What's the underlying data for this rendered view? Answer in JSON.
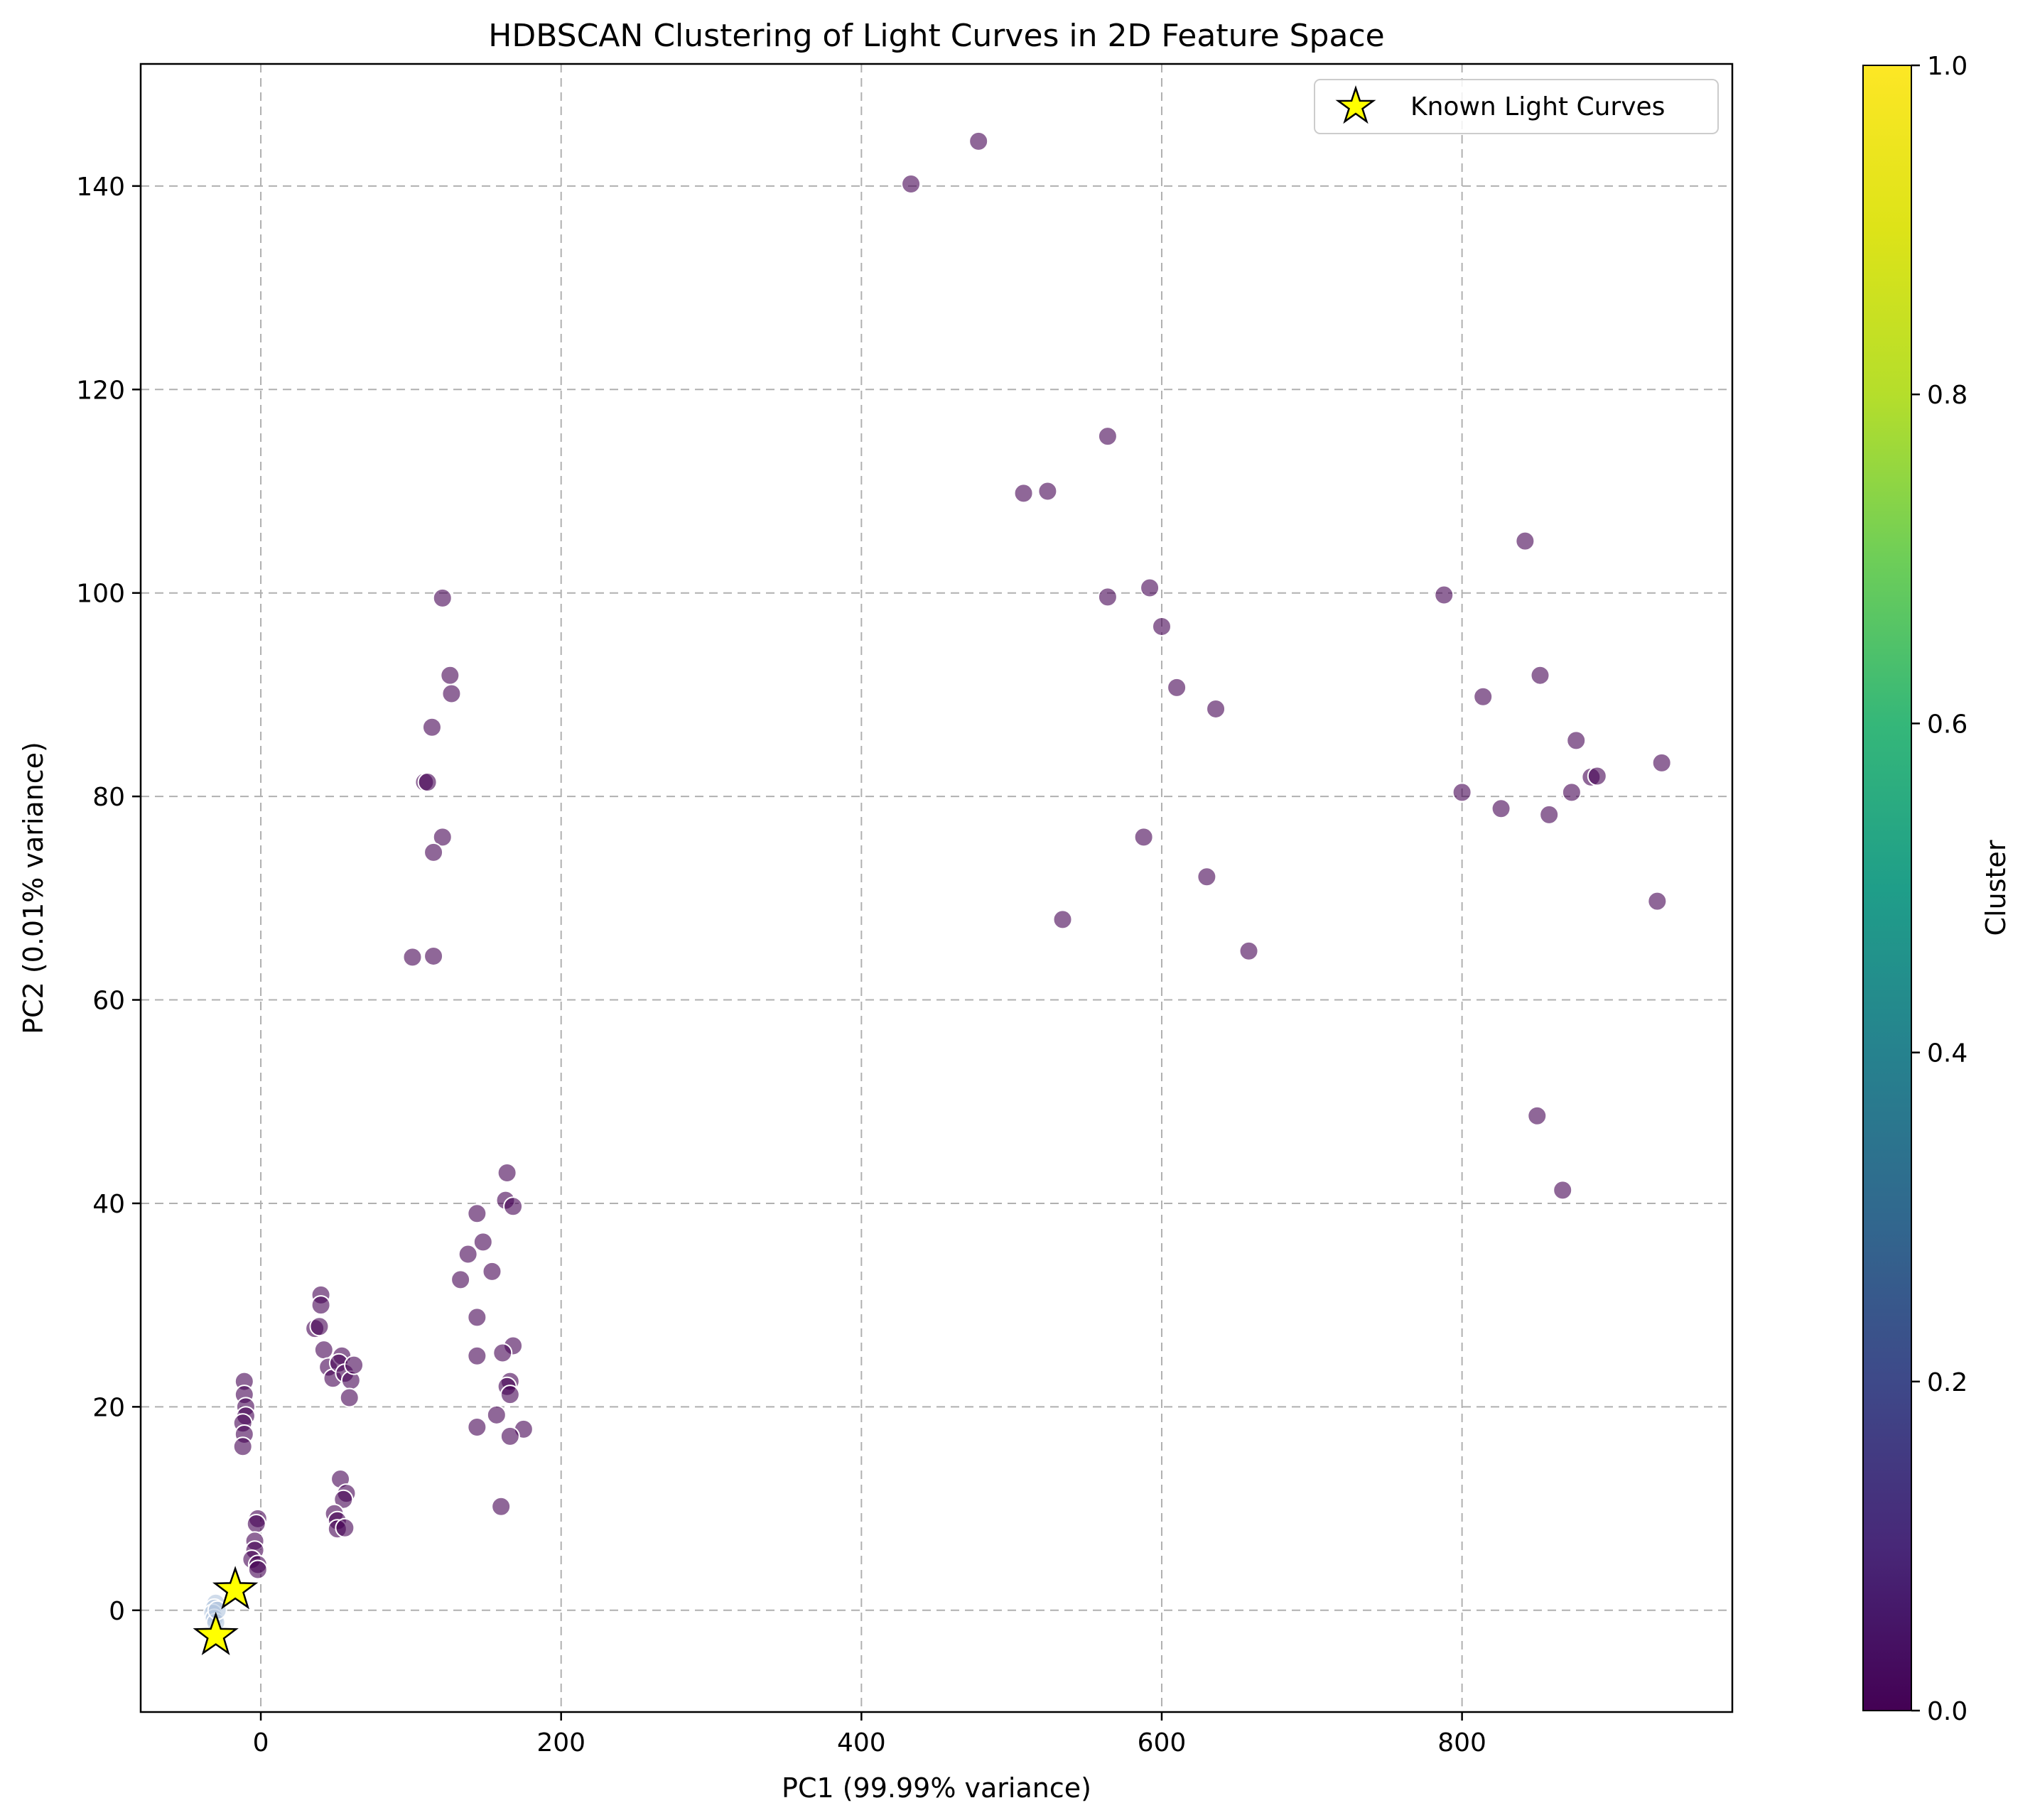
{
  "chart_data": {
    "type": "scatter",
    "title": "HDBSCAN Clustering of Light Curves in 2D Feature Space",
    "xlabel": "PC1 (99.99% variance)",
    "ylabel": "PC2 (0.01% variance)",
    "xlim": [
      -80,
      980
    ],
    "ylim": [
      -10,
      152
    ],
    "xticks": [
      0,
      200,
      400,
      600,
      800
    ],
    "xtick_labels": [
      "0",
      "200",
      "400",
      "600",
      "800"
    ],
    "yticks": [
      0,
      20,
      40,
      60,
      80,
      100,
      120,
      140
    ],
    "ytick_labels": [
      "0",
      "20",
      "40",
      "60",
      "80",
      "100",
      "120",
      "140"
    ],
    "grid": true,
    "legend_position": "top-right",
    "colorbar": {
      "label": "Cluster",
      "range": [
        0,
        1
      ],
      "ticks": [
        0.0,
        0.2,
        0.4,
        0.6,
        0.8,
        1.0
      ],
      "tick_labels": [
        "0.0",
        "0.2",
        "0.4",
        "0.6",
        "0.8",
        "1.0"
      ],
      "colormap": "viridis"
    },
    "series": [
      {
        "cluster": 0,
        "color": "#440154",
        "alpha": 0.6,
        "points": [
          [
            433,
            140.2
          ],
          [
            478,
            144.4
          ],
          [
            508,
            109.8
          ],
          [
            524,
            110.0
          ],
          [
            564,
            115.4
          ],
          [
            564,
            99.6
          ],
          [
            592,
            100.5
          ],
          [
            600,
            96.7
          ],
          [
            610,
            90.7
          ],
          [
            636,
            88.6
          ],
          [
            588,
            76.0
          ],
          [
            630,
            72.1
          ],
          [
            534,
            67.9
          ],
          [
            658,
            64.8
          ],
          [
            788,
            99.8
          ],
          [
            842,
            105.1
          ],
          [
            852,
            91.9
          ],
          [
            814,
            89.8
          ],
          [
            876,
            85.5
          ],
          [
            886,
            81.9
          ],
          [
            890,
            82.0
          ],
          [
            933,
            83.3
          ],
          [
            800,
            80.4
          ],
          [
            826,
            78.8
          ],
          [
            873,
            80.4
          ],
          [
            858,
            78.2
          ],
          [
            930,
            69.7
          ],
          [
            850,
            48.6
          ],
          [
            867,
            41.3
          ],
          [
            121,
            99.5
          ],
          [
            126,
            91.9
          ],
          [
            127,
            90.1
          ],
          [
            114,
            86.8
          ],
          [
            109,
            81.4
          ],
          [
            111,
            81.4
          ],
          [
            121,
            76.0
          ],
          [
            115,
            74.5
          ],
          [
            101,
            64.2
          ],
          [
            115,
            64.3
          ],
          [
            164,
            43.0
          ],
          [
            163,
            40.3
          ],
          [
            168,
            39.7
          ],
          [
            144,
            39.0
          ],
          [
            148,
            36.2
          ],
          [
            138,
            35.0
          ],
          [
            154,
            33.3
          ],
          [
            133,
            32.5
          ],
          [
            144,
            28.8
          ],
          [
            168,
            26.0
          ],
          [
            161,
            25.3
          ],
          [
            144,
            25.0
          ],
          [
            166,
            22.5
          ],
          [
            164,
            22.0
          ],
          [
            166,
            21.2
          ],
          [
            157,
            19.2
          ],
          [
            144,
            18.0
          ],
          [
            175,
            17.8
          ],
          [
            166,
            17.1
          ],
          [
            160,
            10.2
          ],
          [
            40,
            31.0
          ],
          [
            40,
            30.0
          ],
          [
            36,
            27.7
          ],
          [
            39,
            27.9
          ],
          [
            42,
            25.6
          ],
          [
            45,
            23.9
          ],
          [
            48,
            22.8
          ],
          [
            54,
            25.0
          ],
          [
            52,
            24.3
          ],
          [
            56,
            23.3
          ],
          [
            60,
            22.6
          ],
          [
            62,
            24.1
          ],
          [
            59,
            20.9
          ],
          [
            53,
            12.9
          ],
          [
            57,
            11.5
          ],
          [
            55,
            10.9
          ],
          [
            49,
            9.5
          ],
          [
            51,
            8.8
          ],
          [
            51,
            8.0
          ],
          [
            56,
            8.1
          ],
          [
            -11,
            22.5
          ],
          [
            -11,
            21.2
          ],
          [
            -10,
            20.0
          ],
          [
            -10,
            19.1
          ],
          [
            -12,
            18.4
          ],
          [
            -11,
            17.3
          ],
          [
            -12,
            16.1
          ],
          [
            -2,
            9.0
          ],
          [
            -3,
            8.5
          ],
          [
            -4,
            6.8
          ],
          [
            -4,
            5.9
          ],
          [
            -6,
            5.0
          ],
          [
            -2,
            4.5
          ],
          [
            -2,
            4.0
          ]
        ]
      },
      {
        "cluster": 1,
        "color": "#b0c4de",
        "alpha": 0.6,
        "points": [
          [
            -30,
            0.7
          ],
          [
            -31,
            0.2
          ],
          [
            -32,
            -0.3
          ],
          [
            -31,
            -0.8
          ],
          [
            -30,
            -1.2
          ],
          [
            -29,
            0.0
          ]
        ]
      },
      {
        "name": "Known Light Curves",
        "marker": "star",
        "color": "#ffff00",
        "points": [
          [
            -17,
            2.0
          ],
          [
            -30,
            -2.5
          ]
        ]
      }
    ]
  }
}
